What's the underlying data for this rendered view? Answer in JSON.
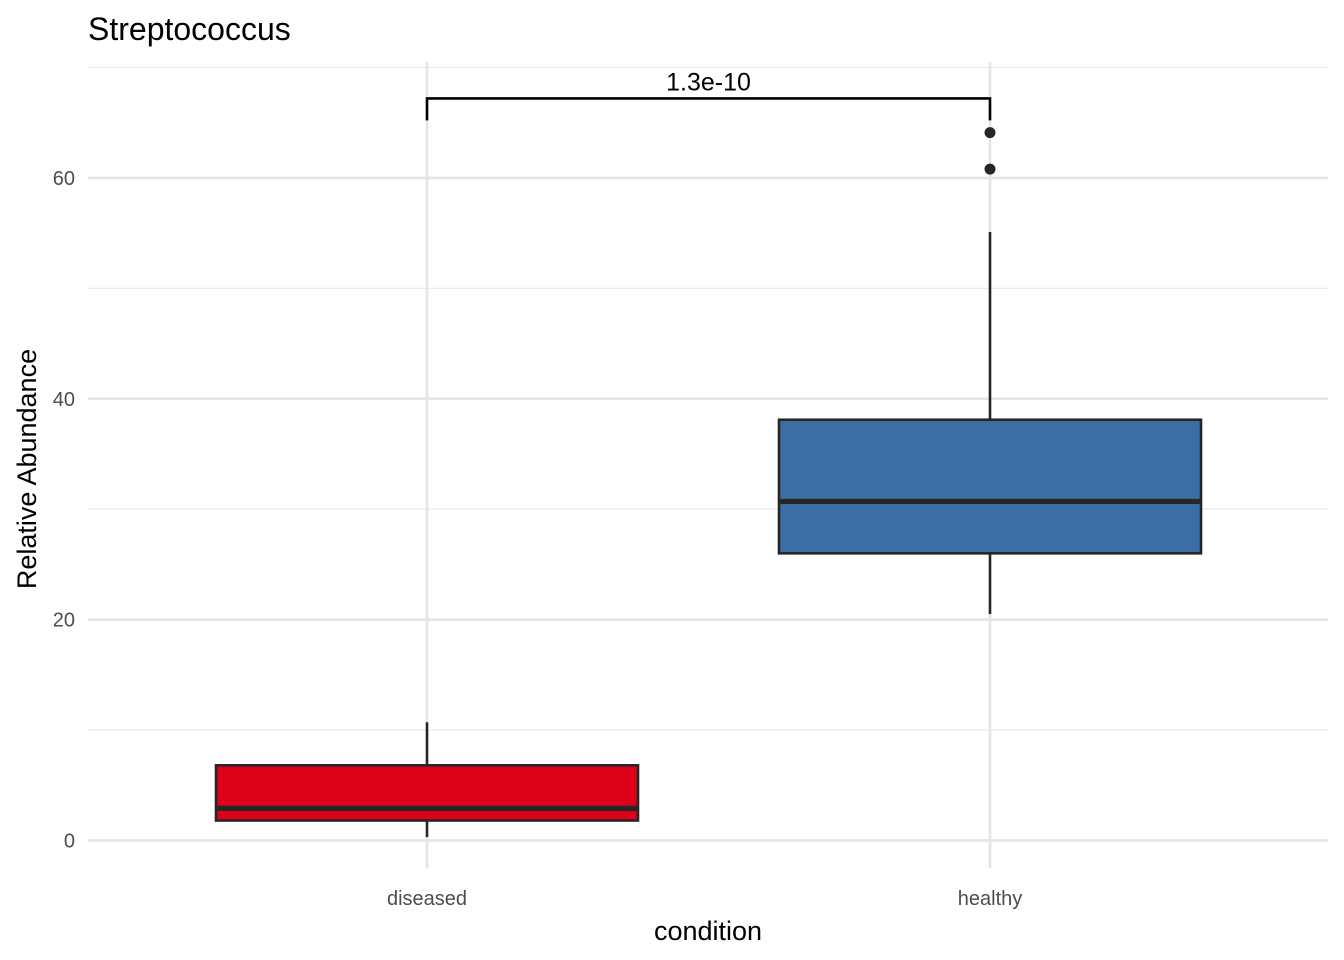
{
  "chart_data": {
    "type": "box",
    "title": "Streptococcus",
    "xlabel": "condition",
    "ylabel": "Relative Abundance",
    "categories": [
      "diseased",
      "healthy"
    ],
    "ylim": [
      -2.5,
      70.5
    ],
    "y_ticks": [
      0,
      20,
      40,
      60
    ],
    "y_tick_labels": [
      "0",
      "20",
      "40",
      "60"
    ],
    "grid": true,
    "legend": "none",
    "boxes": [
      {
        "category": "diseased",
        "fill": "#dc0018",
        "whisker_low": 0.3,
        "q1": 1.8,
        "median": 2.9,
        "q3": 6.8,
        "whisker_high": 10.7,
        "outliers": []
      },
      {
        "category": "healthy",
        "fill": "#3b6ea5",
        "whisker_low": 20.5,
        "q1": 26.0,
        "median": 30.7,
        "q3": 38.1,
        "whisker_high": 55.1,
        "outliers": [
          60.8,
          64.1
        ]
      }
    ],
    "annotations": [
      {
        "type": "significance_bracket",
        "from": "diseased",
        "to": "healthy",
        "y": 67.2,
        "label": "1.3e-10"
      }
    ]
  }
}
